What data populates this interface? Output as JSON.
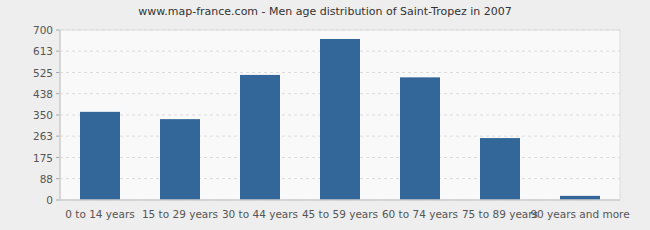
{
  "chart_data": {
    "type": "bar",
    "title": "www.map-france.com - Men age distribution of Saint-Tropez in 2007",
    "categories": [
      "0 to 14 years",
      "15 to 29 years",
      "30 to 44 years",
      "45 to 59 years",
      "60 to 74 years",
      "75 to 89 years",
      "90 years and more"
    ],
    "values": [
      363,
      333,
      515,
      663,
      505,
      255,
      17
    ],
    "color": "#336699",
    "ylim": [
      0,
      700
    ],
    "yticks": [
      0,
      88,
      175,
      263,
      350,
      438,
      525,
      613,
      700
    ],
    "grid": true
  }
}
